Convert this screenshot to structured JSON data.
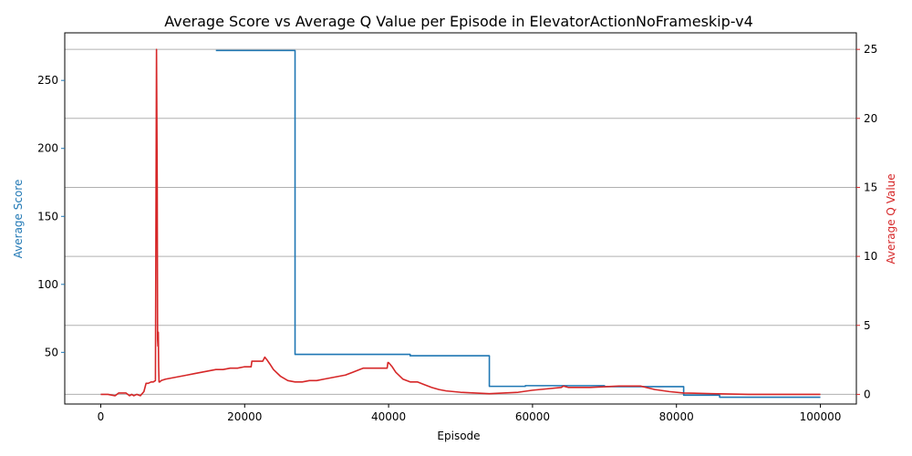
{
  "chart_data": {
    "type": "line",
    "title": "Average Score vs Average Q Value per Episode in ElevatorActionNoFrameskip-v4",
    "xlabel": "Episode",
    "ylabel_left": "Average Score",
    "ylabel_right": "Average Q Value",
    "xlim": [
      -5000,
      105000
    ],
    "ylim_left": [
      12,
      285
    ],
    "ylim_right": [
      -0.7,
      26.2
    ],
    "x_ticks": [
      0,
      20000,
      40000,
      60000,
      80000,
      100000
    ],
    "x_tick_labels": [
      "0",
      "20000",
      "40000",
      "60000",
      "80000",
      "100000"
    ],
    "y_left_ticks": [
      50,
      100,
      150,
      200,
      250
    ],
    "y_left_tick_labels": [
      "50",
      "100",
      "150",
      "200",
      "250"
    ],
    "y_right_ticks": [
      0,
      5,
      10,
      15,
      20,
      25
    ],
    "y_right_tick_labels": [
      "0",
      "5",
      "10",
      "15",
      "20",
      "25"
    ],
    "grid": "horizontal lines at right-axis ticks",
    "colors": {
      "score": "#1f77b4",
      "q_value": "#d62728",
      "grid": "#b0b0b0",
      "axis": "#000000"
    },
    "series": [
      {
        "axis": "left",
        "color": "#1f77b4",
        "step": true,
        "x": [
          16000,
          27000,
          27000,
          43000,
          43000,
          54000,
          54000,
          59000,
          59000,
          70000,
          70000,
          81000,
          81000,
          86000,
          86000,
          100000
        ],
        "values": [
          272,
          272,
          48.5,
          48.5,
          47.5,
          47.5,
          25,
          25,
          25.5,
          25.5,
          24.8,
          24.8,
          18.5,
          18.5,
          17,
          17
        ]
      },
      {
        "axis": "right",
        "color": "#d62728",
        "step": false,
        "x": [
          0,
          1000,
          2000,
          2500,
          3000,
          3500,
          4000,
          4300,
          4600,
          5000,
          5500,
          6000,
          6300,
          6600,
          7000,
          7300,
          7600,
          7750,
          7850,
          7900,
          7950,
          8000,
          8050,
          8100,
          8200,
          8400,
          9000,
          10000,
          11000,
          12000,
          13000,
          14000,
          15000,
          16000,
          17000,
          18000,
          19000,
          20000,
          20900,
          21000,
          21100,
          22000,
          22500,
          22800,
          23100,
          23500,
          24000,
          25000,
          26000,
          27000,
          28000,
          29000,
          30000,
          31000,
          32000,
          33000,
          34000,
          35000,
          36000,
          36500,
          37000,
          38000,
          39000,
          39800,
          39900,
          40000,
          40500,
          41000,
          42000,
          43000,
          43500,
          44000,
          45000,
          46000,
          47000,
          48000,
          50000,
          52000,
          54000,
          56000,
          58000,
          60000,
          62000,
          64000,
          64300,
          65000,
          66000,
          68000,
          70000,
          72000,
          75000,
          77000,
          79000,
          81000,
          85000,
          90000,
          95000,
          100000
        ],
        "values": [
          0.0,
          0.0,
          -0.1,
          0.1,
          0.1,
          0.1,
          -0.1,
          0.0,
          -0.1,
          0.0,
          -0.1,
          0.2,
          0.8,
          0.8,
          0.9,
          0.9,
          1.0,
          25.0,
          15.0,
          4.0,
          3.5,
          4.5,
          2.0,
          0.9,
          0.9,
          1.0,
          1.1,
          1.2,
          1.3,
          1.4,
          1.5,
          1.6,
          1.7,
          1.8,
          1.8,
          1.9,
          1.9,
          2.0,
          2.0,
          2.4,
          2.4,
          2.4,
          2.4,
          2.7,
          2.5,
          2.2,
          1.8,
          1.3,
          1.0,
          0.9,
          0.9,
          1.0,
          1.0,
          1.1,
          1.2,
          1.3,
          1.4,
          1.6,
          1.8,
          1.9,
          1.9,
          1.9,
          1.9,
          1.9,
          2.3,
          2.3,
          2.0,
          1.6,
          1.1,
          0.9,
          0.9,
          0.9,
          0.7,
          0.5,
          0.35,
          0.25,
          0.15,
          0.1,
          0.05,
          0.1,
          0.15,
          0.3,
          0.4,
          0.5,
          0.6,
          0.5,
          0.5,
          0.5,
          0.55,
          0.6,
          0.6,
          0.35,
          0.2,
          0.1,
          0.05,
          0.0,
          0.0,
          0.0
        ]
      }
    ]
  }
}
